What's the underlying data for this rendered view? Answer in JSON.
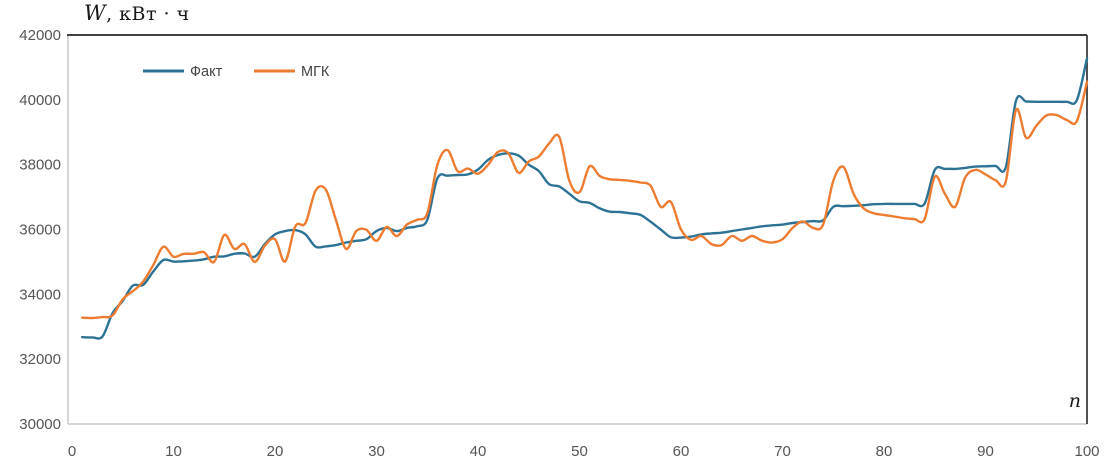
{
  "chart_data": {
    "type": "line",
    "title": "W, кВт · ч",
    "x_axis_label": "n",
    "x_start": 1,
    "x_ticks": [
      0,
      10,
      20,
      30,
      40,
      50,
      60,
      70,
      80,
      90,
      100
    ],
    "y_ticks": [
      30000,
      32000,
      34000,
      36000,
      38000,
      40000,
      42000
    ],
    "xlim": [
      0,
      100
    ],
    "ylim": [
      30000,
      42000
    ],
    "grid": "none",
    "legend_position": "top-left-inside",
    "colors": {
      "fact": "#2B7295",
      "mgk": "#ED7C31",
      "axis_light": "#BFBFBF",
      "axis_dark": "#262626",
      "tick_text": "#555555"
    },
    "series": [
      {
        "name": "Факт",
        "color": "#2B7295",
        "values": [
          32680,
          32670,
          32700,
          33420,
          33800,
          34270,
          34290,
          34700,
          35060,
          35010,
          35020,
          35040,
          35080,
          35160,
          35170,
          35250,
          35260,
          35160,
          35550,
          35850,
          35950,
          35980,
          35850,
          35470,
          35480,
          35520,
          35600,
          35650,
          35700,
          35950,
          36050,
          35950,
          36050,
          36100,
          36300,
          37580,
          37660,
          37680,
          37700,
          37850,
          38150,
          38300,
          38350,
          38280,
          38000,
          37800,
          37400,
          37330,
          37100,
          36870,
          36820,
          36650,
          36550,
          36540,
          36500,
          36450,
          36240,
          36000,
          35760,
          35750,
          35780,
          35850,
          35880,
          35900,
          35950,
          36000,
          36050,
          36100,
          36130,
          36150,
          36200,
          36230,
          36260,
          36280,
          36700,
          36720,
          36730,
          36750,
          36780,
          36790,
          36790,
          36790,
          36790,
          36800,
          37840,
          37870,
          37870,
          37900,
          37940,
          37950,
          37960,
          37920,
          39970,
          39950,
          39940,
          39940,
          39940,
          39940,
          39990,
          41280
        ]
      },
      {
        "name": "МГК",
        "color": "#ED7C31",
        "values": [
          33280,
          33270,
          33300,
          33350,
          33850,
          34100,
          34390,
          34900,
          35470,
          35160,
          35250,
          35250,
          35300,
          35000,
          35830,
          35400,
          35550,
          35000,
          35500,
          35700,
          35010,
          36100,
          36200,
          37200,
          37230,
          36300,
          35400,
          35950,
          35990,
          35650,
          36080,
          35800,
          36150,
          36300,
          36500,
          38000,
          38450,
          37800,
          37880,
          37720,
          38000,
          38400,
          38350,
          37750,
          38100,
          38250,
          38650,
          38860,
          37500,
          37150,
          37950,
          37650,
          37550,
          37530,
          37500,
          37450,
          37350,
          36700,
          36850,
          36000,
          35680,
          35800,
          35550,
          35520,
          35800,
          35650,
          35800,
          35650,
          35600,
          35700,
          36050,
          36250,
          36050,
          36150,
          37500,
          37930,
          37100,
          36650,
          36500,
          36450,
          36400,
          36350,
          36320,
          36320,
          37630,
          37100,
          36700,
          37600,
          37840,
          37700,
          37520,
          37480,
          39690,
          38830,
          39200,
          39520,
          39530,
          39380,
          39340,
          40560
        ]
      }
    ]
  }
}
